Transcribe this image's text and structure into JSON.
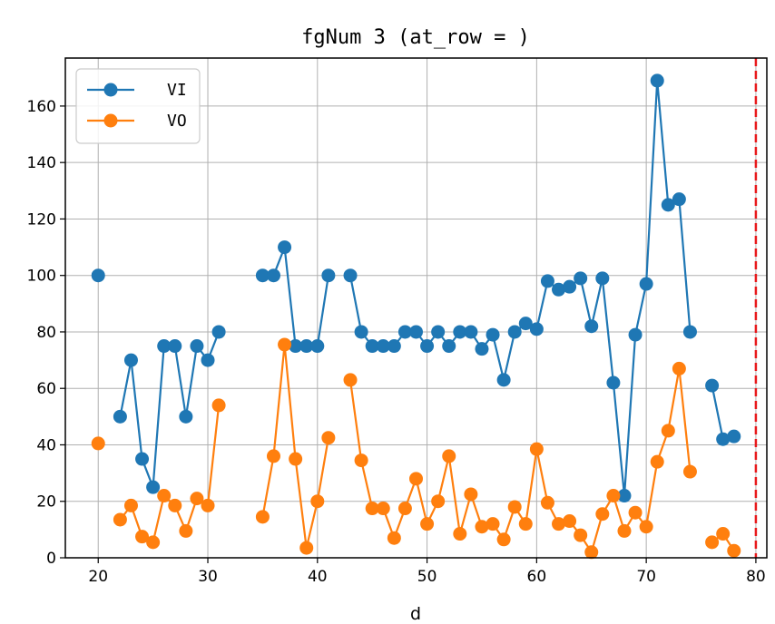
{
  "chart_data": {
    "type": "line",
    "title": "fgNum 3 (at_row = )",
    "xlabel": "d",
    "ylabel": "",
    "xlim": [
      17,
      81
    ],
    "ylim": [
      0,
      177
    ],
    "xticks": [
      20,
      30,
      40,
      50,
      60,
      70,
      80
    ],
    "yticks": [
      0,
      20,
      40,
      60,
      80,
      100,
      120,
      140,
      160
    ],
    "grid": true,
    "legend_position": "top-left",
    "reference_line": {
      "x": 80,
      "color": "#e8191c",
      "style": "dashed"
    },
    "colors": {
      "VI": "#1f77b4",
      "VO": "#ff7f0e"
    },
    "x": [
      20,
      21,
      22,
      23,
      24,
      25,
      26,
      27,
      28,
      29,
      30,
      31,
      32,
      33,
      34,
      35,
      36,
      37,
      38,
      39,
      40,
      41,
      42,
      43,
      44,
      45,
      46,
      47,
      48,
      49,
      50,
      51,
      52,
      53,
      54,
      55,
      56,
      57,
      58,
      59,
      60,
      61,
      62,
      63,
      64,
      65,
      66,
      67,
      68,
      69,
      70,
      71,
      72,
      73,
      74,
      75,
      76,
      77,
      78
    ],
    "series": [
      {
        "name": "VI",
        "values": [
          100,
          null,
          50,
          70,
          35,
          25,
          75,
          75,
          50,
          75,
          70,
          80,
          null,
          null,
          null,
          100,
          100,
          110,
          75,
          75,
          75,
          100,
          null,
          100,
          80,
          75,
          75,
          75,
          80,
          80,
          75,
          80,
          75,
          80,
          80,
          74,
          79,
          63,
          80,
          83,
          81,
          98,
          95,
          96,
          99,
          82,
          99,
          62,
          22,
          79,
          97,
          169,
          125,
          127,
          80,
          null,
          61,
          42,
          43
        ]
      },
      {
        "name": "VO",
        "values": [
          40.5,
          null,
          13.5,
          18.5,
          7.5,
          5.5,
          22,
          18.5,
          9.5,
          21,
          18.5,
          54,
          null,
          null,
          null,
          14.5,
          36,
          75.5,
          35,
          3.5,
          20,
          42.5,
          null,
          63,
          34.5,
          17.5,
          17.5,
          7,
          17.5,
          28,
          12,
          20,
          36,
          8.5,
          22.5,
          11,
          12,
          6.5,
          18,
          12,
          38.5,
          19.5,
          12,
          13,
          8,
          2,
          15.5,
          22,
          9.5,
          16,
          11,
          34,
          45,
          67,
          30.5,
          null,
          5.5,
          8.5,
          2.5
        ]
      }
    ]
  }
}
